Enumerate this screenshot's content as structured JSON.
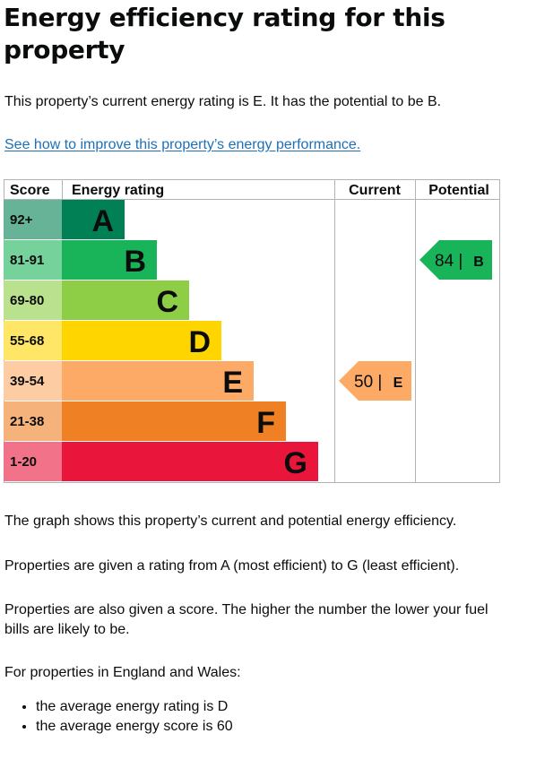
{
  "heading": "Energy efficiency rating for this property",
  "intro": "This property’s current energy rating is E. It has the potential to be B.",
  "improve_link": "See how to improve this property’s energy performance.",
  "table_headers": {
    "score": "Score",
    "energy_rating": "Energy rating",
    "current": "Current",
    "potential": "Potential"
  },
  "chart_data": {
    "type": "bar",
    "bands": [
      {
        "score": "92+",
        "letter": "A",
        "color": "#008054",
        "score_bg": "#66b398"
      },
      {
        "score": "81-91",
        "letter": "B",
        "color": "#19b459",
        "score_bg": "#75d29b"
      },
      {
        "score": "69-80",
        "letter": "C",
        "color": "#8dce46",
        "score_bg": "#bae28e"
      },
      {
        "score": "55-68",
        "letter": "D",
        "color": "#ffd500",
        "score_bg": "#ffe666"
      },
      {
        "score": "39-54",
        "letter": "E",
        "color": "#fcaa65",
        "score_bg": "#fdcca3"
      },
      {
        "score": "21-38",
        "letter": "F",
        "color": "#ef8023",
        "score_bg": "#f5b37b"
      },
      {
        "score": "1-20",
        "letter": "G",
        "color": "#e9153b",
        "score_bg": "#f27389"
      }
    ],
    "current": {
      "score": 50,
      "letter": "E",
      "label": "50 |",
      "color": "#fcaa65"
    },
    "potential": {
      "score": 84,
      "letter": "B",
      "label": "84 |",
      "color": "#19b459"
    }
  },
  "paragraphs": [
    "The graph shows this property’s current and potential energy efficiency.",
    "Properties are given a rating from A (most efficient) to G (least efficient).",
    "Properties are also given a score. The higher the number the lower your fuel bills are likely to be.",
    "For properties in England and Wales:"
  ],
  "averages": [
    "the average energy rating is D",
    "the average energy score is 60"
  ]
}
